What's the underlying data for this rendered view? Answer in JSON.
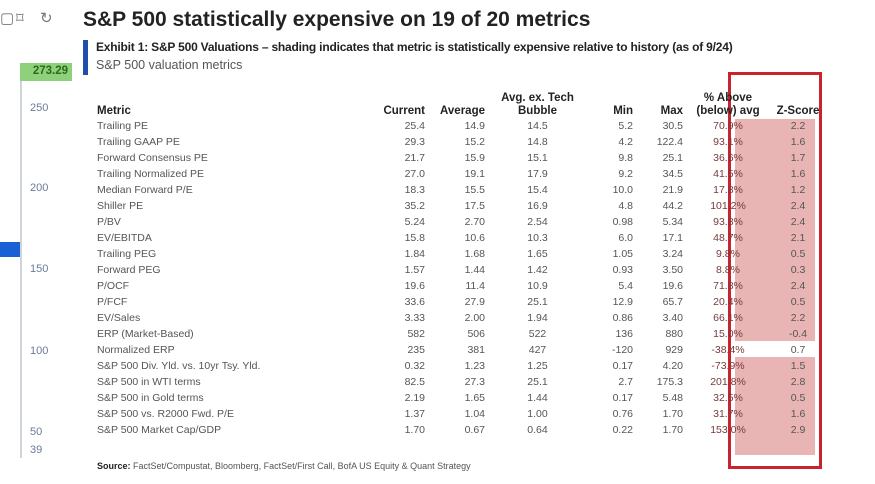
{
  "toolbar": {
    "icons": [
      "square-icon",
      "bookmark-icon",
      "refresh-icon"
    ]
  },
  "axis": {
    "price_label": "273.29",
    "ticks": [
      "250",
      "200",
      "150",
      "100",
      "50",
      "39"
    ]
  },
  "title": "S&P 500 statistically expensive on 19 of 20 metrics",
  "exhibit": "Exhibit 1: S&P 500 Valuations – shading indicates that metric is statistically expensive relative to history (as of 9/24)",
  "subtitle": "S&P 500 valuation metrics",
  "table": {
    "headers": [
      "Metric",
      "Current",
      "Average",
      "Avg. ex. Tech Bubble",
      "Min",
      "Max",
      "% Above (below) avg",
      "Z-Score"
    ],
    "rows": [
      [
        "Trailing PE",
        "25.4",
        "14.9",
        "14.5",
        "5.2",
        "30.5",
        "70.9%",
        "2.2",
        true
      ],
      [
        "Trailing GAAP PE",
        "29.3",
        "15.2",
        "14.8",
        "4.2",
        "122.4",
        "93.1%",
        "1.6",
        true
      ],
      [
        "Forward Consensus PE",
        "21.7",
        "15.9",
        "15.1",
        "9.8",
        "25.1",
        "36.6%",
        "1.7",
        true
      ],
      [
        "Trailing Normalized PE",
        "27.0",
        "19.1",
        "17.9",
        "9.2",
        "34.5",
        "41.5%",
        "1.6",
        true
      ],
      [
        "Median Forward P/E",
        "18.3",
        "15.5",
        "15.4",
        "10.0",
        "21.9",
        "17.8%",
        "1.2",
        true
      ],
      [
        "Shiller PE",
        "35.2",
        "17.5",
        "16.9",
        "4.8",
        "44.2",
        "101.2%",
        "2.4",
        true
      ],
      [
        "P/BV",
        "5.24",
        "2.70",
        "2.54",
        "0.98",
        "5.34",
        "93.8%",
        "2.4",
        true
      ],
      [
        "EV/EBITDA",
        "15.8",
        "10.6",
        "10.3",
        "6.0",
        "17.1",
        "48.7%",
        "2.1",
        true
      ],
      [
        "Trailing PEG",
        "1.84",
        "1.68",
        "1.65",
        "1.05",
        "3.24",
        "9.8%",
        "0.5",
        true
      ],
      [
        "Forward PEG",
        "1.57",
        "1.44",
        "1.42",
        "0.93",
        "3.50",
        "8.8%",
        "0.3",
        true
      ],
      [
        "P/OCF",
        "19.6",
        "11.4",
        "10.9",
        "5.4",
        "19.6",
        "71.8%",
        "2.4",
        true
      ],
      [
        "P/FCF",
        "33.6",
        "27.9",
        "25.1",
        "12.9",
        "65.7",
        "20.4%",
        "0.5",
        true
      ],
      [
        "EV/Sales",
        "3.33",
        "2.00",
        "1.94",
        "0.86",
        "3.40",
        "66.1%",
        "2.2",
        true
      ],
      [
        "ERP (Market-Based)",
        "582",
        "506",
        "522",
        "136",
        "880",
        "15.0%",
        "-0.4",
        false
      ],
      [
        "Normalized ERP",
        "235",
        "381",
        "427",
        "-120",
        "929",
        "-38.4%",
        "0.7",
        true
      ],
      [
        "S&P 500 Div. Yld. vs. 10yr Tsy. Yld.",
        "0.32",
        "1.23",
        "1.25",
        "0.17",
        "4.20",
        "-73.9%",
        "1.5",
        true
      ],
      [
        "S&P 500 in WTI terms",
        "82.5",
        "27.3",
        "25.1",
        "2.7",
        "175.3",
        "201.8%",
        "2.8",
        true
      ],
      [
        "S&P 500 in Gold terms",
        "2.19",
        "1.65",
        "1.44",
        "0.17",
        "5.48",
        "32.5%",
        "0.5",
        true
      ],
      [
        "S&P 500 vs. R2000 Fwd. P/E",
        "1.37",
        "1.04",
        "1.00",
        "0.76",
        "1.70",
        "31.7%",
        "1.6",
        true
      ],
      [
        "S&P 500 Market Cap/GDP",
        "1.70",
        "0.67",
        "0.64",
        "0.22",
        "1.70",
        "153.0%",
        "2.9",
        true
      ]
    ]
  },
  "source": {
    "label": "Source:",
    "text": " FactSet/Compustat, Bloomberg, FactSet/First Call, BofA US Equity & Quant Strategy"
  },
  "colors": {
    "highlight_border": "#c8242d",
    "shade": "#e8b4b4",
    "accent_bar": "#1f4fa8",
    "price_label": "#8fd07a"
  }
}
